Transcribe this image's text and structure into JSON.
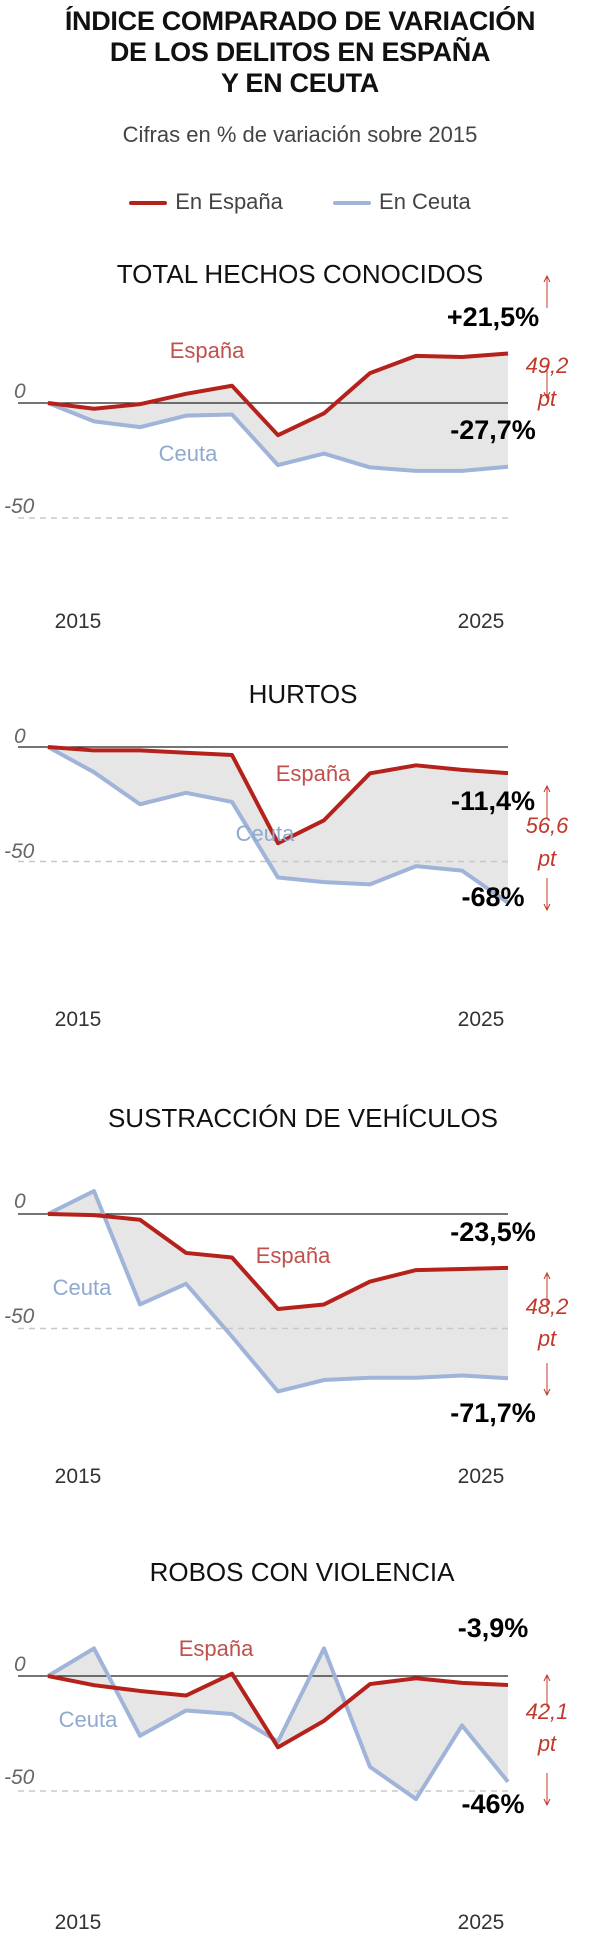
{
  "header": {
    "title_lines": [
      "ÍNDICE COMPARADO DE VARIACIÓN",
      "DE LOS DELITOS EN ESPAÑA",
      "Y EN CEUTA"
    ],
    "subtitle": "Cifras en % de variación sobre 2015"
  },
  "legend": {
    "spain": "En España",
    "ceuta": "En Ceuta"
  },
  "colors": {
    "spain": "#b5221b",
    "ceuta": "#9fb4d8",
    "gap_fill": "#e6e6e6",
    "gap_text": "#c0392b"
  },
  "chart_data": [
    {
      "type": "line",
      "title": "TOTAL HECHOS CONOCIDOS",
      "x": [
        2015,
        2016,
        2017,
        2018,
        2019,
        2020,
        2021,
        2022,
        2023,
        2024,
        2025
      ],
      "x_tick_labels": [
        "2015",
        "2025"
      ],
      "ylim": [
        -50,
        30
      ],
      "y_ticks": [
        "0",
        "-50"
      ],
      "series": [
        {
          "name": "España",
          "values": [
            0,
            -2.5,
            -0.5,
            4,
            7.5,
            -14,
            -4.5,
            13,
            20.5,
            20,
            21.5
          ]
        },
        {
          "name": "Ceuta",
          "values": [
            0,
            -8,
            -10.5,
            -5.5,
            -5,
            -27,
            -22,
            -28,
            -29.5,
            -29.5,
            -27.7
          ]
        }
      ],
      "end_labels": {
        "spain": "+21,5%",
        "ceuta": "-27,7%"
      },
      "gap_label": [
        "49,2",
        "pt"
      ]
    },
    {
      "type": "line",
      "title": "HURTOS",
      "x": [
        2015,
        2016,
        2017,
        2018,
        2019,
        2020,
        2021,
        2022,
        2023,
        2024,
        2025
      ],
      "x_tick_labels": [
        "2015",
        "2025"
      ],
      "ylim": [
        -75,
        5
      ],
      "y_ticks": [
        "0",
        "-50"
      ],
      "series": [
        {
          "name": "España",
          "values": [
            0,
            -1.5,
            -1.5,
            -2.5,
            -3.5,
            -42,
            -32,
            -11.5,
            -8,
            -10,
            -11.4
          ]
        },
        {
          "name": "Ceuta",
          "values": [
            0,
            -11,
            -25,
            -20,
            -24,
            -57,
            -59,
            -60,
            -52,
            -54,
            -68
          ]
        }
      ],
      "end_labels": {
        "spain": "-11,4%",
        "ceuta": "-68%"
      },
      "gap_label": [
        "56,6",
        "pt"
      ]
    },
    {
      "type": "line",
      "title": "SUSTRACCIÓN DE VEHÍCULOS",
      "x": [
        2015,
        2016,
        2017,
        2018,
        2019,
        2020,
        2021,
        2022,
        2023,
        2024,
        2025
      ],
      "x_tick_labels": [
        "2015",
        "2025"
      ],
      "ylim": [
        -80,
        12
      ],
      "y_ticks": [
        "0",
        "-50"
      ],
      "series": [
        {
          "name": "España",
          "values": [
            0,
            -0.5,
            -2.5,
            -17,
            -19,
            -41.5,
            -39.5,
            -29.5,
            -24.5,
            -24,
            -23.5
          ]
        },
        {
          "name": "Ceuta",
          "values": [
            0,
            10,
            -39.5,
            -30.5,
            -53.5,
            -77.5,
            -72.5,
            -71.5,
            -71.5,
            -70.5,
            -71.7
          ]
        }
      ],
      "end_labels": {
        "spain": "-23,5%",
        "ceuta": "-71,7%"
      },
      "gap_label": [
        "48,2",
        "pt"
      ]
    },
    {
      "type": "line",
      "title": "ROBOS CON VIOLENCIA",
      "x": [
        2015,
        2016,
        2017,
        2018,
        2019,
        2020,
        2021,
        2022,
        2023,
        2024,
        2025
      ],
      "x_tick_labels": [
        "2015",
        "2025"
      ],
      "ylim": [
        -55,
        15
      ],
      "y_ticks": [
        "0",
        "-50"
      ],
      "series": [
        {
          "name": "España",
          "values": [
            0,
            -4,
            -6.5,
            -8.5,
            1,
            -31,
            -19.5,
            -3.5,
            -1,
            -3,
            -3.9
          ]
        },
        {
          "name": "Ceuta",
          "values": [
            0,
            12,
            -26,
            -15,
            -16.5,
            -28.5,
            12,
            -39.5,
            -53.5,
            -21.5,
            -46
          ]
        }
      ],
      "end_labels": {
        "spain": "-3,9%",
        "ceuta": "-46%"
      },
      "gap_label": [
        "42,1",
        "pt"
      ]
    }
  ]
}
